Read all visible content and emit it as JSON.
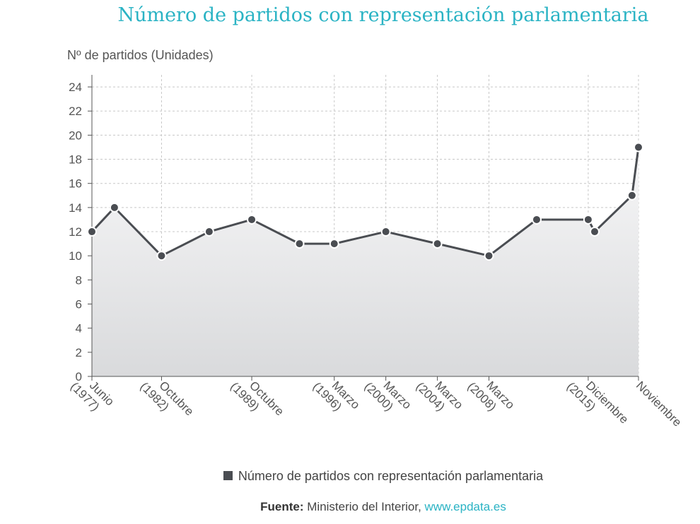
{
  "title": "Número de partidos con representación parlamentaria",
  "chart_data": {
    "type": "area",
    "title": "Número de partidos con representación parlamentaria",
    "ylabel": "Nº de partidos (Unidades)",
    "xlabel": "",
    "ylim": [
      0,
      25
    ],
    "yticks": [
      0,
      2,
      4,
      6,
      8,
      10,
      12,
      14,
      16,
      18,
      20,
      22,
      24
    ],
    "grid": true,
    "legend_position": "bottom",
    "x_tick_labels": [
      {
        "t": 0,
        "label": "Junio (1977)"
      },
      {
        "t": 5.4,
        "label": "Octubre (1982)"
      },
      {
        "t": 12.4,
        "label": "Octubre (1989)"
      },
      {
        "t": 18.8,
        "label": "Marzo (1996)"
      },
      {
        "t": 22.8,
        "label": "Marzo (2000)"
      },
      {
        "t": 26.8,
        "label": "Marzo (2004)"
      },
      {
        "t": 30.8,
        "label": "Marzo (2008)"
      },
      {
        "t": 38.5,
        "label": "Diciembre (2015)"
      },
      {
        "t": 42.4,
        "label": "Noviembre"
      }
    ],
    "series": [
      {
        "name": "Número de partidos con representación parlamentaria",
        "color": "#4a4d52",
        "points": [
          {
            "t": 0,
            "y": 12
          },
          {
            "t": 1.75,
            "y": 14
          },
          {
            "t": 5.4,
            "y": 10
          },
          {
            "t": 9.1,
            "y": 12
          },
          {
            "t": 12.4,
            "y": 13
          },
          {
            "t": 16.1,
            "y": 11
          },
          {
            "t": 18.8,
            "y": 11
          },
          {
            "t": 22.8,
            "y": 12
          },
          {
            "t": 26.8,
            "y": 11
          },
          {
            "t": 30.8,
            "y": 10
          },
          {
            "t": 34.5,
            "y": 13
          },
          {
            "t": 38.5,
            "y": 13
          },
          {
            "t": 39.0,
            "y": 12
          },
          {
            "t": 41.9,
            "y": 15
          },
          {
            "t": 42.4,
            "y": 19
          }
        ]
      }
    ]
  },
  "legend": {
    "label": "Número de partidos con representación parlamentaria"
  },
  "source": {
    "prefix": "Fuente:",
    "text": " Ministerio del Interior, ",
    "link": "www.epdata.es"
  },
  "colors": {
    "accent": "#2ab3c4",
    "line": "#4a4d52",
    "grid": "#c8c8c8"
  }
}
